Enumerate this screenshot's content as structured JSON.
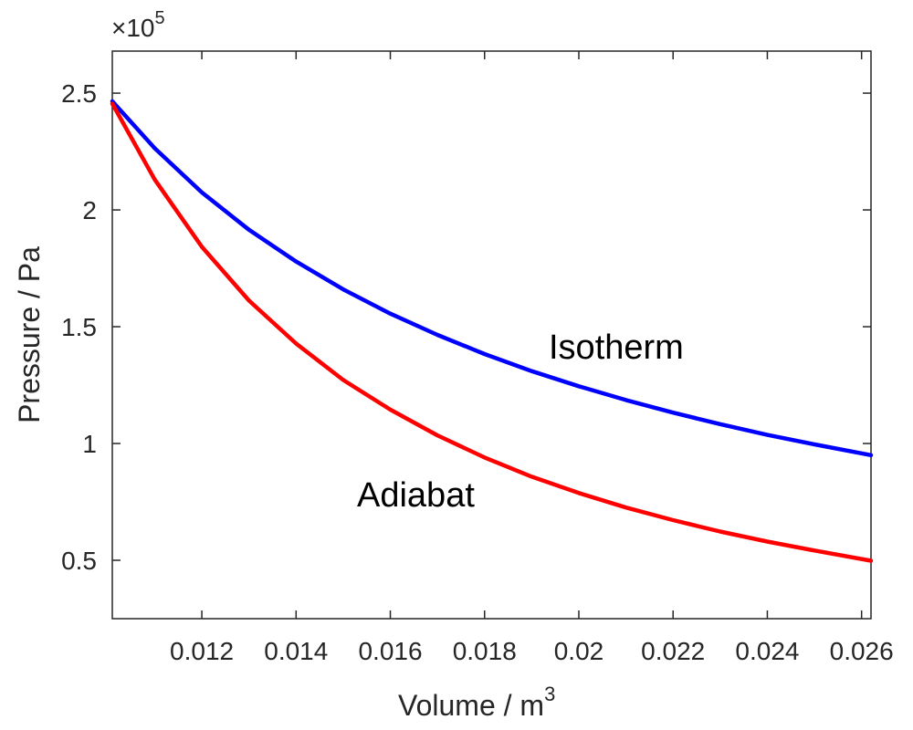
{
  "chart_data": {
    "type": "line",
    "xlabel": "Volume / m",
    "xlabel_superscript": "3",
    "ylabel": "Pressure / Pa",
    "exponent_prefix": "×10",
    "exponent_power": "5",
    "xlim": [
      0.0101,
      0.0262
    ],
    "ylim": [
      0.25,
      2.68
    ],
    "y_multiplier": 100000,
    "grid": false,
    "x_ticks": [
      0.012,
      0.014,
      0.016,
      0.018,
      0.02,
      0.022,
      0.024,
      0.026
    ],
    "x_tick_labels": [
      "0.012",
      "0.014",
      "0.016",
      "0.018",
      "0.02",
      "0.022",
      "0.024",
      "0.026"
    ],
    "y_ticks": [
      0.5,
      1,
      1.5,
      2,
      2.5
    ],
    "y_tick_labels": [
      "0.5",
      "1",
      "1.5",
      "2",
      "2.5"
    ],
    "x": [
      0.0101,
      0.011,
      0.012,
      0.013,
      0.014,
      0.015,
      0.016,
      0.017,
      0.018,
      0.019,
      0.02,
      0.021,
      0.022,
      0.023,
      0.024,
      0.025,
      0.0262
    ],
    "series": [
      {
        "color": "#0000ff",
        "values": [
          2.465,
          2.264,
          2.075,
          1.915,
          1.779,
          1.66,
          1.556,
          1.465,
          1.383,
          1.31,
          1.245,
          1.186,
          1.132,
          1.083,
          1.037,
          0.996,
          0.95
        ]
      },
      {
        "color": "#ff0000",
        "values": [
          2.455,
          2.13,
          1.842,
          1.612,
          1.428,
          1.272,
          1.145,
          1.035,
          0.94,
          0.858,
          0.788,
          0.726,
          0.672,
          0.623,
          0.58,
          0.542,
          0.498
        ]
      }
    ],
    "annotations": [
      {
        "text": "Isotherm",
        "x": 0.0209,
        "y": 1.38
      },
      {
        "text": "Adiabat",
        "x": 0.0165,
        "y": 0.76
      }
    ]
  }
}
